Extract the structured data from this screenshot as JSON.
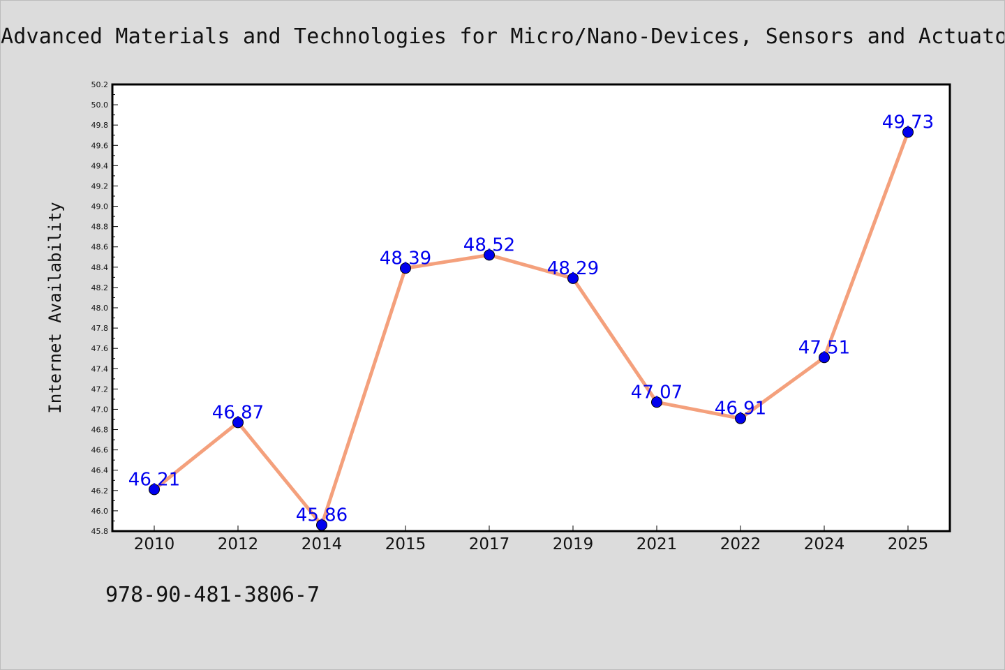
{
  "chart_data": {
    "type": "line",
    "title": "Advanced Materials and Technologies for Micro/Nano-Devices, Sensors and Actuators",
    "xlabel": "",
    "ylabel": "Internet Availability",
    "categories": [
      "2010",
      "2012",
      "2014",
      "2015",
      "2017",
      "2019",
      "2021",
      "2022",
      "2024",
      "2025"
    ],
    "series": [
      {
        "values": [
          46.21,
          46.87,
          45.86,
          48.39,
          48.52,
          48.29,
          47.07,
          46.91,
          47.51,
          49.73
        ],
        "data_labels": [
          "46.21",
          "46.87",
          "45.86",
          "48.39",
          "48.52",
          "48.29",
          "47.07",
          "46.91",
          "47.51",
          "49.73"
        ],
        "line_color": "#f4a07c",
        "marker_color": "#0000ee",
        "label_color": "#0000ee"
      }
    ],
    "ylim": [
      45.8,
      50.2
    ],
    "yticks": [
      "45.8",
      "46.0",
      "46.2",
      "46.4",
      "46.6",
      "46.8",
      "47.0",
      "47.2",
      "47.4",
      "47.6",
      "47.8",
      "48.0",
      "48.2",
      "48.4",
      "48.6",
      "48.8",
      "49.0",
      "49.2",
      "49.4",
      "49.6",
      "49.8",
      "50.0",
      "50.2"
    ],
    "grid": false,
    "legend": "none",
    "plot_background": "#ffffff",
    "figure_background": "#dcdcdc"
  },
  "footer": {
    "isbn": "978-90-481-3806-7"
  }
}
